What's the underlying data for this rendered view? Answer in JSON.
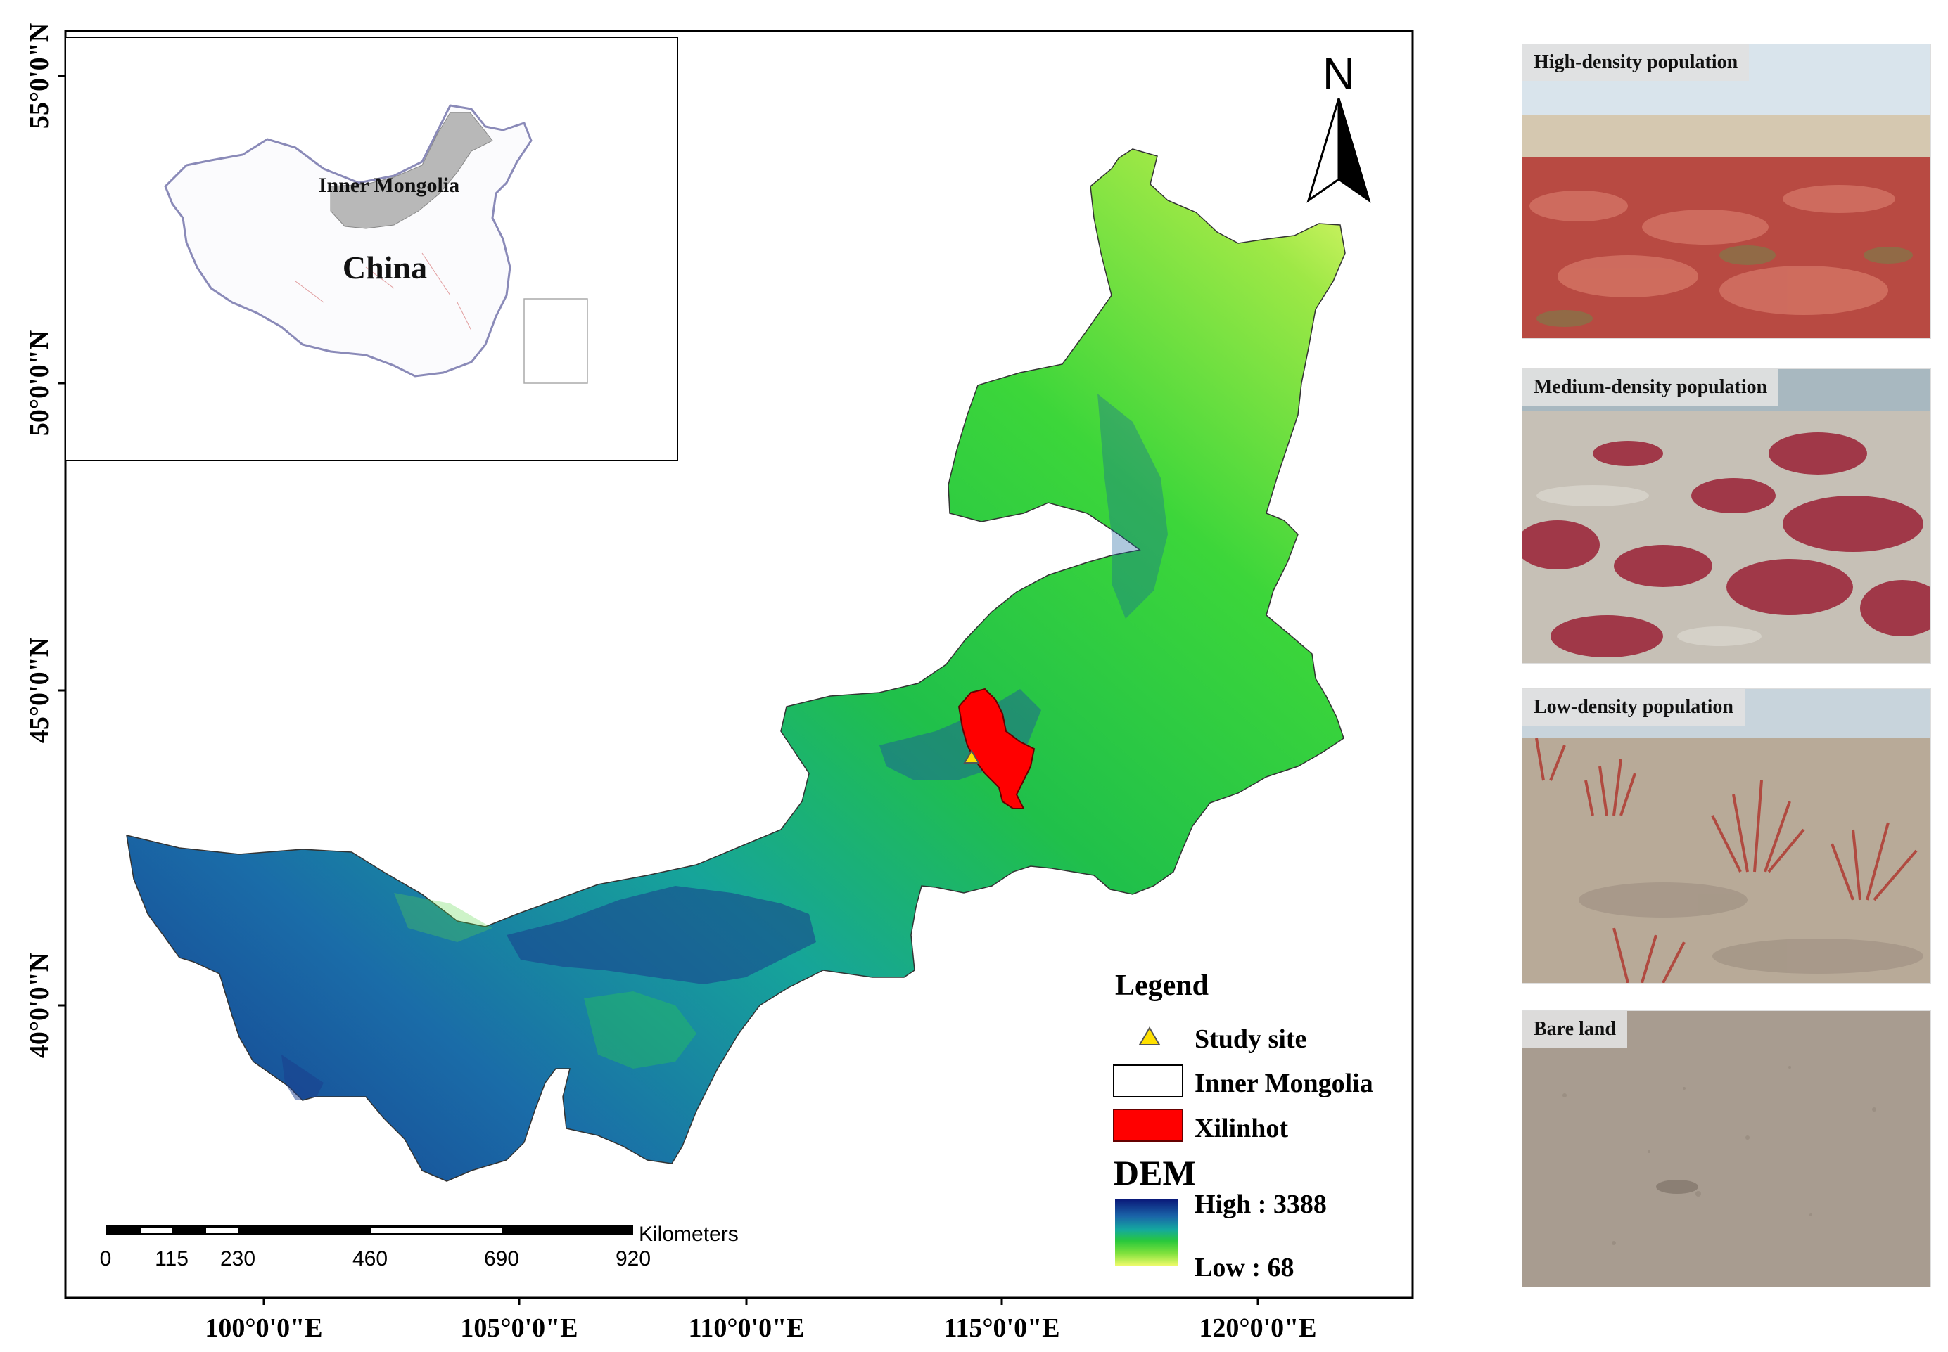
{
  "latitude_labels": [
    "55°0'0\"N",
    "50°0'0\"N",
    "45°0'0\"N",
    "40°0'0\"N"
  ],
  "longitude_labels": [
    "100°0'0\"E",
    "105°0'0\"E",
    "110°0'0\"E",
    "115°0'0\"E",
    "120°0'0\"E"
  ],
  "north_arrow": {
    "letter": "N",
    "icon": "north-arrow-icon"
  },
  "inset": {
    "region_label": "Inner Mongolia",
    "country_label": "China",
    "highlight_color": "#b8b8b8"
  },
  "scale_bar": {
    "unit": "Kilometers",
    "ticks": [
      "0",
      "115",
      "230",
      "460",
      "690",
      "920"
    ]
  },
  "legend": {
    "title": "Legend",
    "items": [
      {
        "label": "Study site",
        "symbol": "triangle",
        "color": "#ffe000"
      },
      {
        "label": "Inner Mongolia",
        "symbol": "rectangle",
        "color": "#ffffff"
      },
      {
        "label": "Xilinhot",
        "symbol": "rectangle",
        "color": "#ff0000"
      }
    ],
    "dem": {
      "title": "DEM",
      "high_label": "High : 3388",
      "low_label": "Low : 68",
      "colors": [
        "#0a1a7a",
        "#1a64a8",
        "#14a8a0",
        "#28c83c",
        "#7ce03c",
        "#f4fc6c"
      ]
    }
  },
  "photos": [
    {
      "caption": "High-density population"
    },
    {
      "caption": "Medium-density population"
    },
    {
      "caption": "Low-density population"
    },
    {
      "caption": "Bare land"
    }
  ]
}
